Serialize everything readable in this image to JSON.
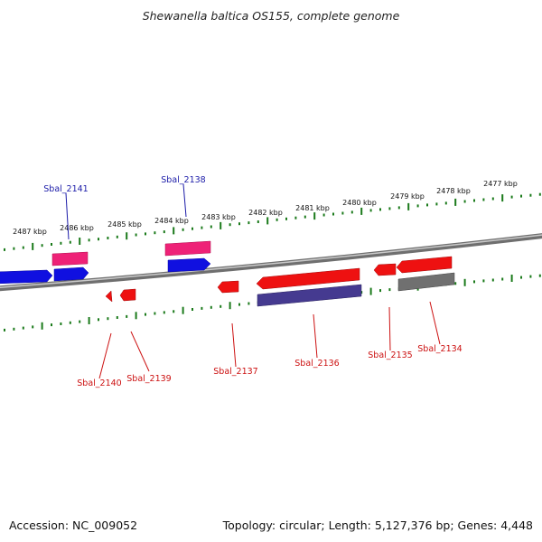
{
  "title": "Shewanella baltica OS155, complete genome",
  "footer": {
    "accession": "Accession: NC_009052",
    "summary": "Topology: circular; Length: 5,127,376 bp; Genes: 4,448"
  },
  "colors": {
    "background": "#ffffff",
    "genome_track": "#8c8c8c",
    "ruler_ticks": "#1a7a1a",
    "forward_cds": "#1010e0",
    "forward_label": "#1a1aa8",
    "forward_highlight": "#ee2277",
    "reverse_cds": "#ee1111",
    "reverse_label": "#cc1111",
    "reverse_alt_blue": "#453a90",
    "reverse_alt_gray": "#707070"
  },
  "scale_labels": [
    "2487 kbp",
    "2486 kbp",
    "2485 kbp",
    "2484 kbp",
    "2483 kbp",
    "2482 kbp",
    "2481 kbp",
    "2480 kbp",
    "2479 kbp",
    "2478 kbp",
    "2477 kbp"
  ],
  "forward_genes": [
    {
      "label": "Sbal_2141",
      "color": "pink"
    },
    {
      "label": "Sbal_2138",
      "color": "pink"
    }
  ],
  "reverse_genes": [
    {
      "label": "Sbal_2140",
      "color": "red"
    },
    {
      "label": "Sbal_2139",
      "color": "red"
    },
    {
      "label": "Sbal_2137",
      "color": "red"
    },
    {
      "label": "Sbal_2136",
      "color": "red"
    },
    {
      "label": "Sbal_2135",
      "color": "red"
    },
    {
      "label": "Sbal_2134",
      "color": "red"
    }
  ]
}
